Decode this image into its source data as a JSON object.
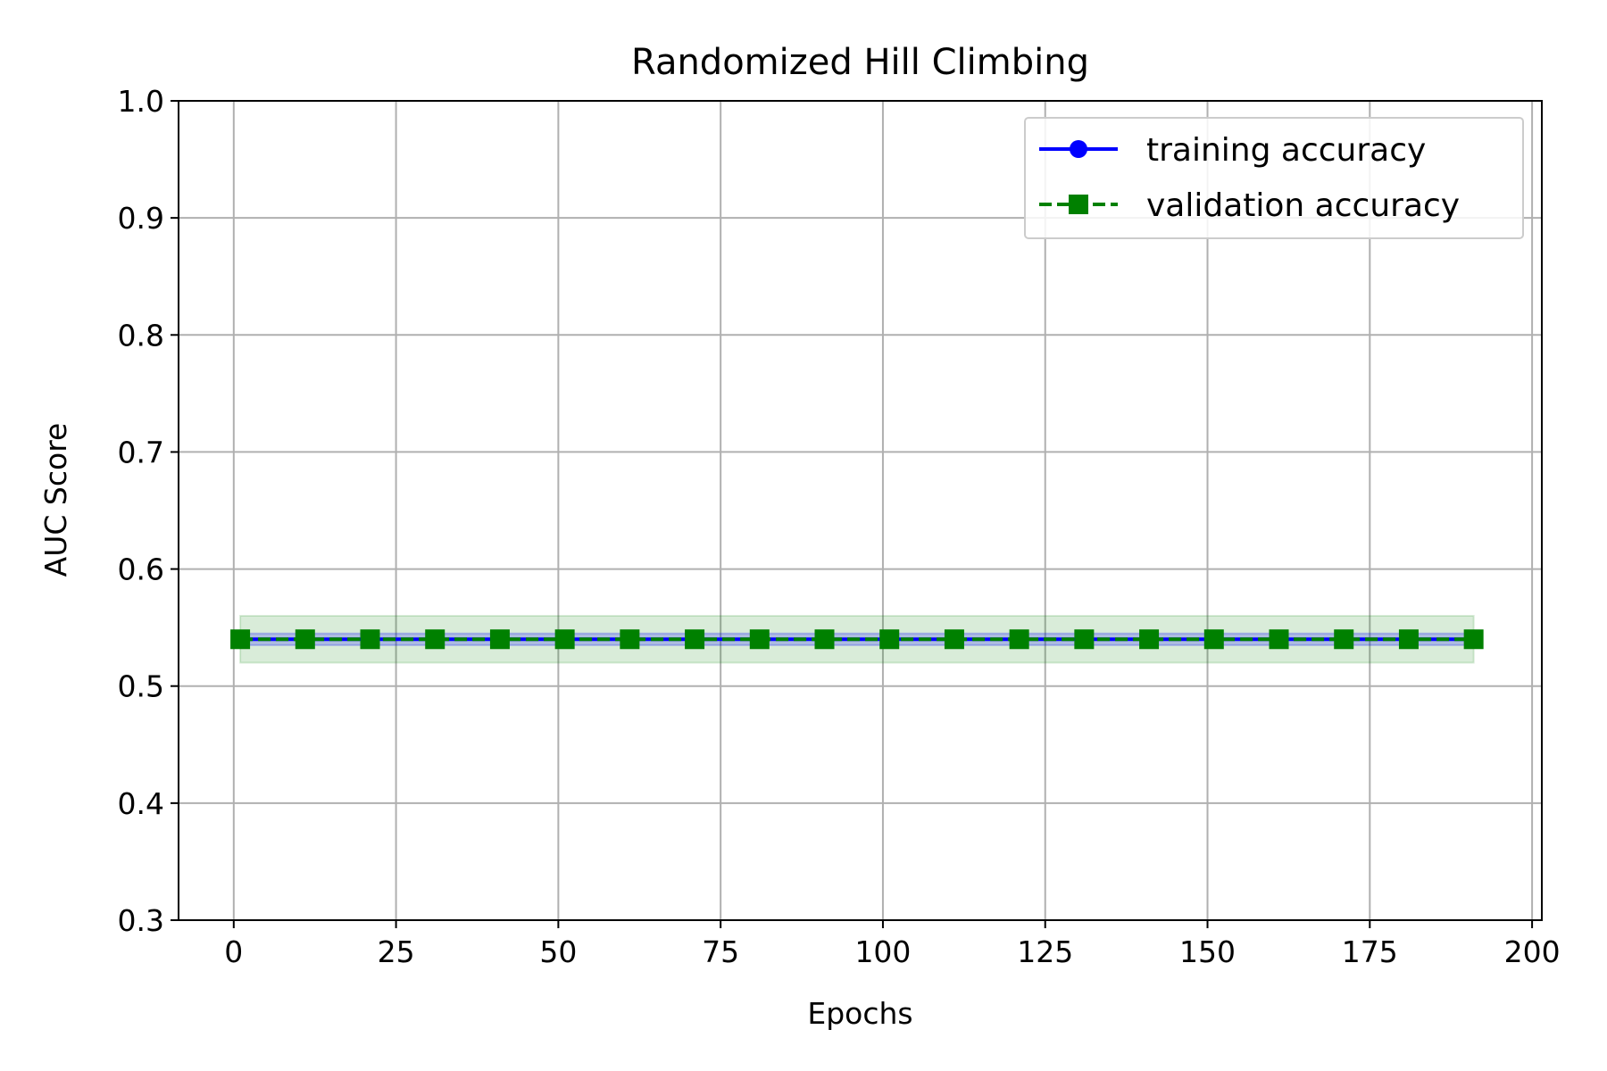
{
  "chart_data": {
    "type": "line",
    "title": "Randomized Hill Climbing",
    "xlabel": "Epochs",
    "ylabel": "AUC Score",
    "xlim": [
      -8.5,
      201.5
    ],
    "ylim": [
      0.3,
      1.0
    ],
    "xticks": [
      0,
      25,
      50,
      75,
      100,
      125,
      150,
      175,
      200
    ],
    "yticks": [
      0.3,
      0.4,
      0.5,
      0.6,
      0.7,
      0.8,
      0.9,
      1.0
    ],
    "ytick_labels": [
      "0.3",
      "0.4",
      "0.5",
      "0.6",
      "0.7",
      "0.8",
      "0.9",
      "1.0"
    ],
    "grid": true,
    "legend_position": "top-right",
    "x": [
      1,
      11,
      21,
      31,
      41,
      51,
      61,
      71,
      81,
      91,
      101,
      111,
      121,
      131,
      141,
      151,
      161,
      171,
      181,
      191
    ],
    "series": [
      {
        "name": "training accuracy",
        "color": "#0000ff",
        "line_style": "solid",
        "marker": "circle",
        "values": [
          0.54,
          0.54,
          0.54,
          0.54,
          0.54,
          0.54,
          0.54,
          0.54,
          0.54,
          0.54,
          0.54,
          0.54,
          0.54,
          0.54,
          0.54,
          0.54,
          0.54,
          0.54,
          0.54,
          0.54
        ],
        "band_lower": [
          0.535,
          0.535,
          0.535,
          0.535,
          0.535,
          0.535,
          0.535,
          0.535,
          0.535,
          0.535,
          0.535,
          0.535,
          0.535,
          0.535,
          0.535,
          0.535,
          0.535,
          0.535,
          0.535,
          0.535
        ],
        "band_upper": [
          0.545,
          0.545,
          0.545,
          0.545,
          0.545,
          0.545,
          0.545,
          0.545,
          0.545,
          0.545,
          0.545,
          0.545,
          0.545,
          0.545,
          0.545,
          0.545,
          0.545,
          0.545,
          0.545,
          0.545
        ]
      },
      {
        "name": "validation accuracy",
        "color": "#008000",
        "line_style": "dashed",
        "marker": "square",
        "values": [
          0.54,
          0.54,
          0.54,
          0.54,
          0.54,
          0.54,
          0.54,
          0.54,
          0.54,
          0.54,
          0.54,
          0.54,
          0.54,
          0.54,
          0.54,
          0.54,
          0.54,
          0.54,
          0.54,
          0.54
        ],
        "band_lower": [
          0.52,
          0.52,
          0.52,
          0.52,
          0.52,
          0.52,
          0.52,
          0.52,
          0.52,
          0.52,
          0.52,
          0.52,
          0.52,
          0.52,
          0.52,
          0.52,
          0.52,
          0.52,
          0.52,
          0.52
        ],
        "band_upper": [
          0.56,
          0.56,
          0.56,
          0.56,
          0.56,
          0.56,
          0.56,
          0.56,
          0.56,
          0.56,
          0.56,
          0.56,
          0.56,
          0.56,
          0.56,
          0.56,
          0.56,
          0.56,
          0.56,
          0.56
        ]
      }
    ]
  }
}
